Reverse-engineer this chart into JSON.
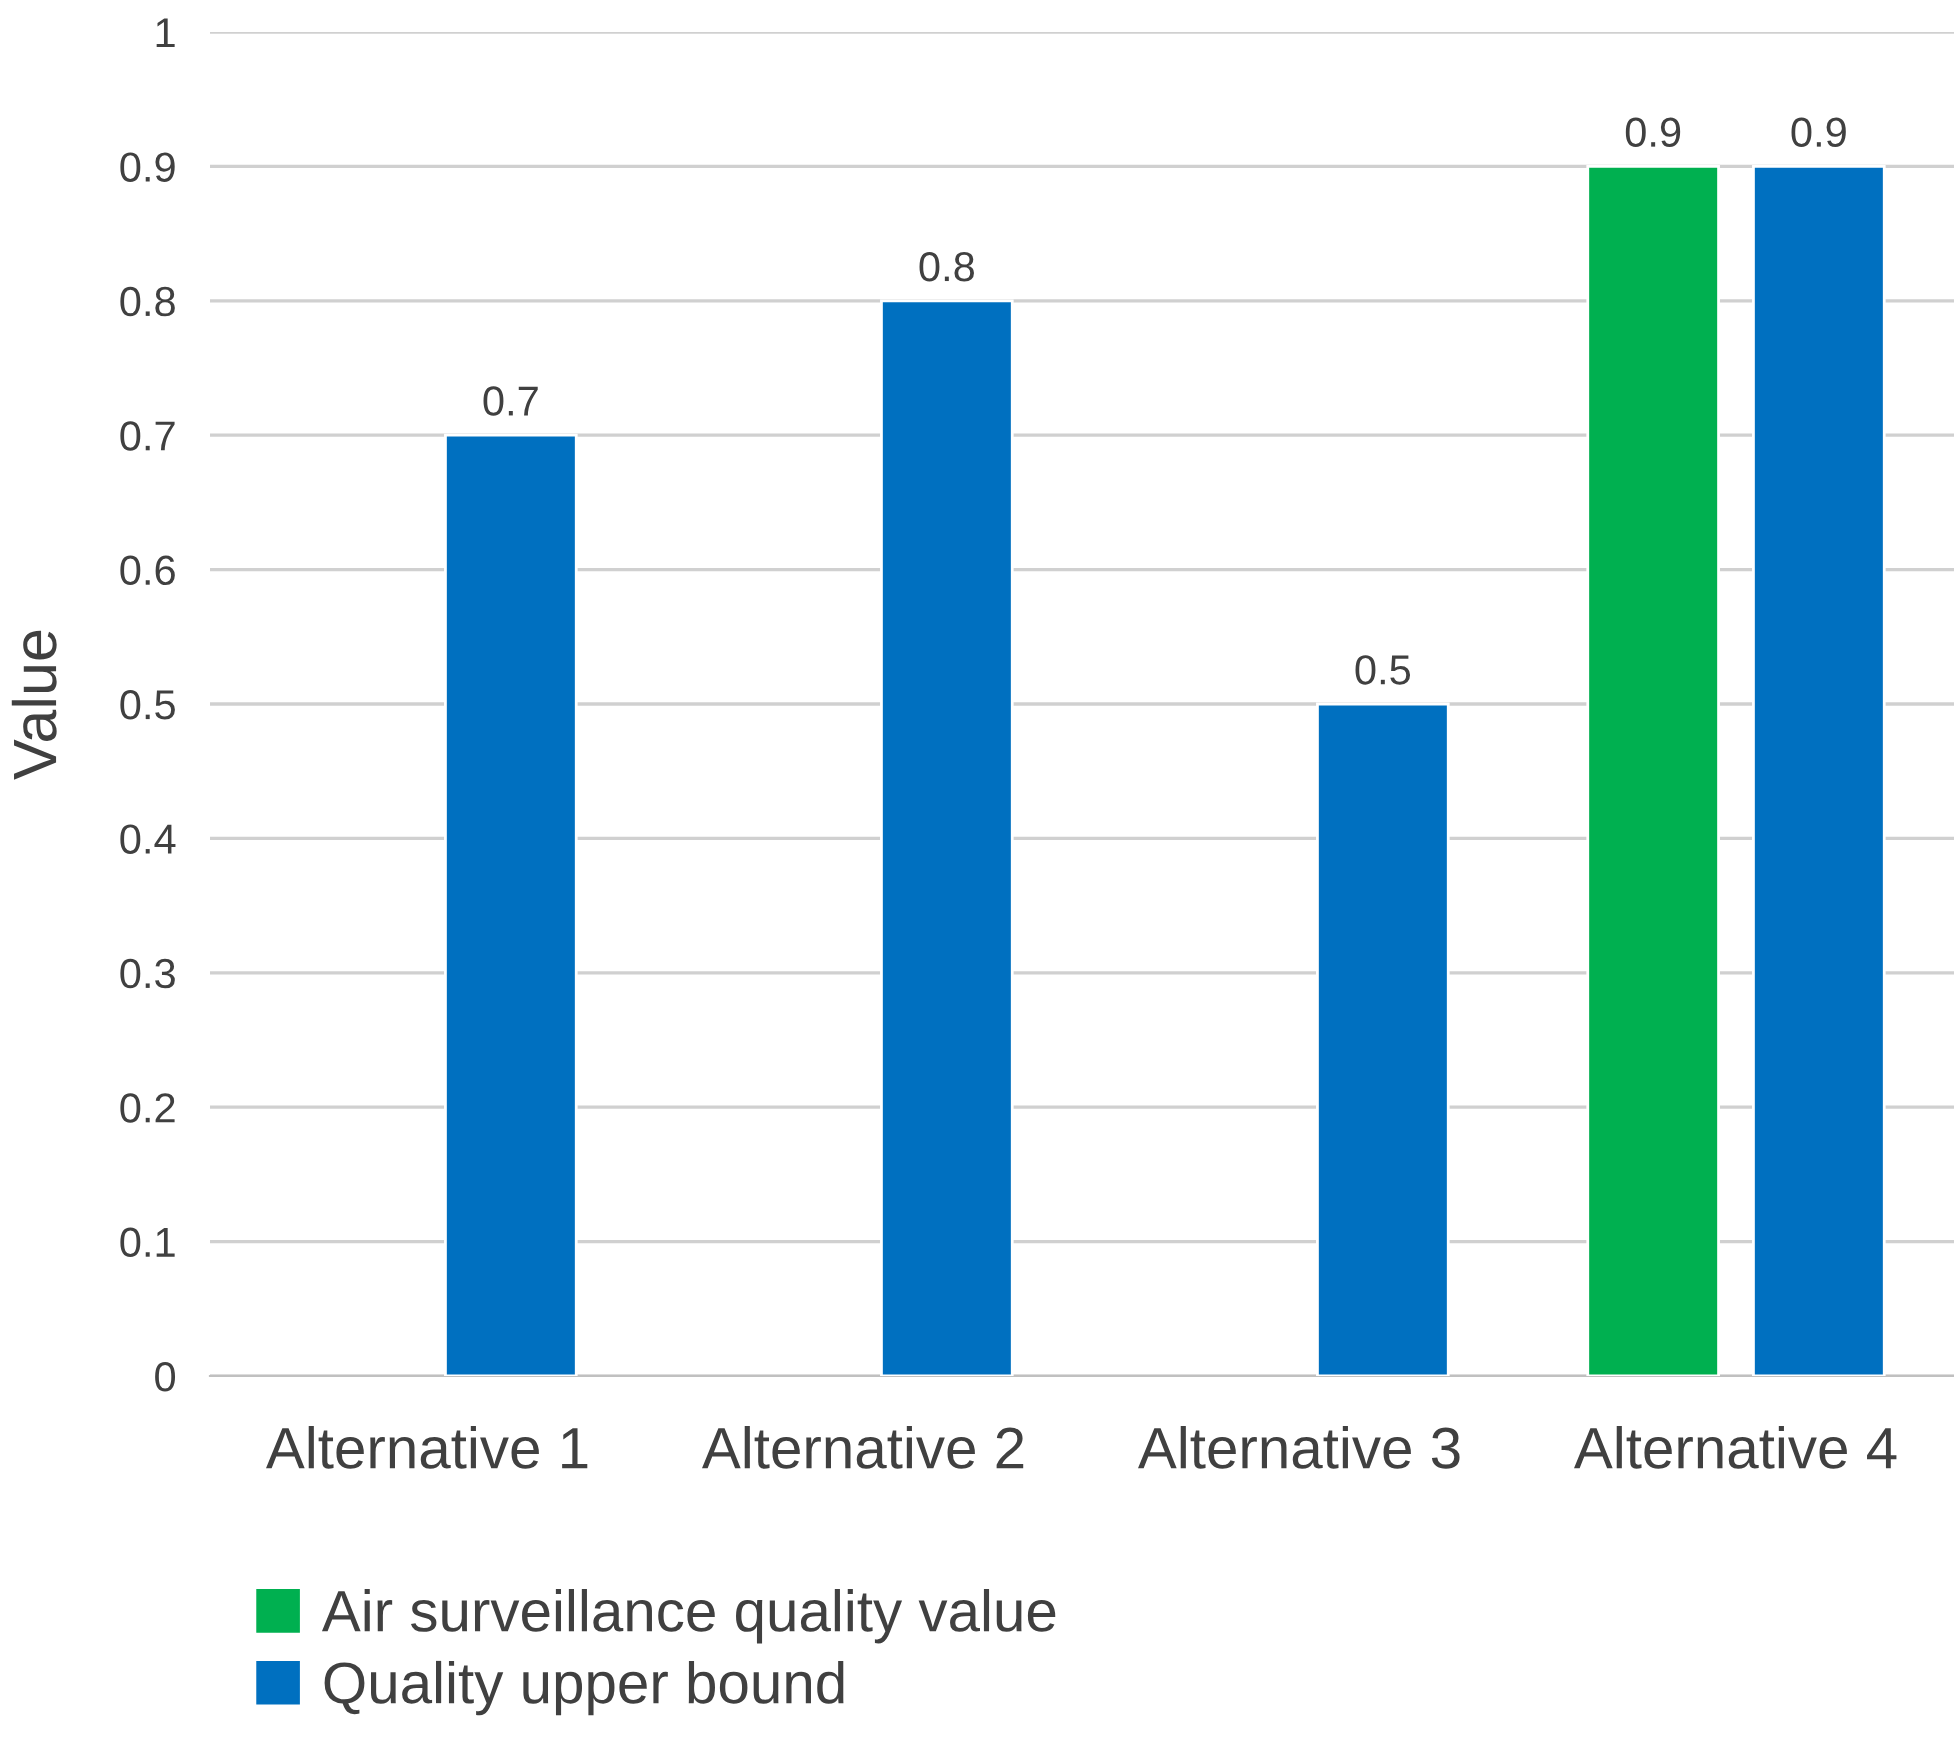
{
  "chart_data": {
    "type": "bar",
    "ylabel": "Value",
    "categories": [
      "Alternative 1",
      "Alternative 2",
      "Alternative 3",
      "Alternative 4"
    ],
    "series": [
      {
        "name": "Air surveillance quality value",
        "color": "#00b050",
        "values": [
          null,
          null,
          null,
          0.9
        ]
      },
      {
        "name": "Quality upper bound",
        "color": "#0070c0",
        "values": [
          0.7,
          0.8,
          0.5,
          0.9
        ]
      }
    ],
    "ylim": [
      0,
      1
    ],
    "yticks": [
      0,
      0.1,
      0.2,
      0.3,
      0.4,
      0.5,
      0.6,
      0.7,
      0.8,
      0.9,
      1
    ],
    "grid": "y",
    "legend": "bottom left",
    "data_labels": true
  }
}
